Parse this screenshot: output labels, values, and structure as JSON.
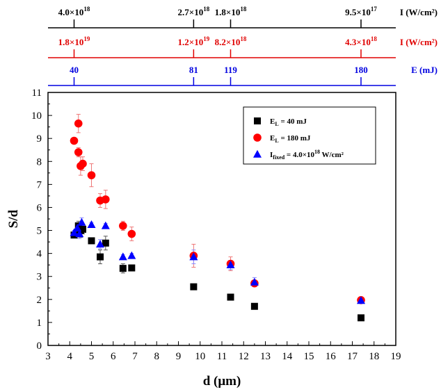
{
  "chart_data": {
    "type": "scatter",
    "xlabel": "d (μm)",
    "ylabel": "S/d",
    "xlim": [
      3,
      19
    ],
    "ylim": [
      0,
      11
    ],
    "xticks": [
      3,
      4,
      5,
      6,
      7,
      8,
      9,
      10,
      11,
      12,
      13,
      14,
      15,
      16,
      17,
      18,
      19
    ],
    "yticks": [
      0,
      1,
      2,
      3,
      4,
      5,
      6,
      7,
      8,
      9,
      10,
      11
    ],
    "grid": false,
    "legend_position": "top-right",
    "series": [
      {
        "name": "E_L = 40 mJ",
        "name_main": "E",
        "name_sub": "L",
        "name_rest": " = 40 mJ",
        "marker": "square",
        "color": "#000000",
        "points": [
          {
            "x": 4.2,
            "y": 4.8,
            "err": 0.1
          },
          {
            "x": 4.4,
            "y": 5.2,
            "err": 0.2
          },
          {
            "x": 4.5,
            "y": 5.0,
            "err": 0.3
          },
          {
            "x": 4.6,
            "y": 5.05,
            "err": 0.2
          },
          {
            "x": 5.0,
            "y": 4.55,
            "err": 0.1
          },
          {
            "x": 5.4,
            "y": 3.85,
            "err": 0.3
          },
          {
            "x": 5.65,
            "y": 4.45,
            "err": 0.3
          },
          {
            "x": 6.45,
            "y": 3.35,
            "err": 0.2
          },
          {
            "x": 6.85,
            "y": 3.37,
            "err": 0.1
          },
          {
            "x": 9.7,
            "y": 2.55,
            "err": 0.1
          },
          {
            "x": 11.4,
            "y": 2.1,
            "err": 0.1
          },
          {
            "x": 12.5,
            "y": 1.7,
            "err": 0.1
          },
          {
            "x": 17.4,
            "y": 1.2,
            "err": 0.1
          }
        ]
      },
      {
        "name": "E_L = 180 mJ",
        "name_main": "E",
        "name_sub": "L",
        "name_rest": " = 180 mJ",
        "marker": "circle",
        "color": "#ff0000",
        "points": [
          {
            "x": 4.2,
            "y": 8.9,
            "err": 0.1
          },
          {
            "x": 4.4,
            "y": 9.65,
            "err": 0.4
          },
          {
            "x": 4.4,
            "y": 8.4,
            "err": 0.2
          },
          {
            "x": 4.5,
            "y": 7.8,
            "err": 0.4
          },
          {
            "x": 4.6,
            "y": 7.9,
            "err": 0.3
          },
          {
            "x": 5.0,
            "y": 7.4,
            "err": 0.5
          },
          {
            "x": 5.4,
            "y": 6.3,
            "err": 0.3
          },
          {
            "x": 5.65,
            "y": 6.35,
            "err": 0.4
          },
          {
            "x": 6.45,
            "y": 5.2,
            "err": 0.2
          },
          {
            "x": 6.85,
            "y": 4.85,
            "err": 0.3
          },
          {
            "x": 9.7,
            "y": 3.9,
            "err": 0.5
          },
          {
            "x": 11.4,
            "y": 3.55,
            "err": 0.3
          },
          {
            "x": 12.5,
            "y": 2.7,
            "err": 0.1
          },
          {
            "x": 17.4,
            "y": 1.97,
            "err": 0.1
          }
        ]
      },
      {
        "name": "I_fixed = 4.0×10^18 W/cm²",
        "name_main": "I",
        "name_sub": "fixed",
        "name_rest": " = 4.0×10",
        "name_sup": "18",
        "name_tail": " W/cm²",
        "marker": "triangle",
        "color": "#0000ff",
        "points": [
          {
            "x": 4.2,
            "y": 4.9,
            "err": 0.1
          },
          {
            "x": 4.35,
            "y": 5.1,
            "err": 0.2
          },
          {
            "x": 4.45,
            "y": 4.85,
            "err": 0.2
          },
          {
            "x": 4.55,
            "y": 5.35,
            "err": 0.2
          },
          {
            "x": 5.0,
            "y": 5.25,
            "err": 0.1
          },
          {
            "x": 5.4,
            "y": 4.4,
            "err": 0.2
          },
          {
            "x": 5.65,
            "y": 5.2,
            "err": 0.1
          },
          {
            "x": 6.45,
            "y": 3.85,
            "err": 0.1
          },
          {
            "x": 6.85,
            "y": 3.9,
            "err": 0.1
          },
          {
            "x": 9.7,
            "y": 3.85,
            "err": 0.3
          },
          {
            "x": 11.4,
            "y": 3.5,
            "err": 0.2
          },
          {
            "x": 12.5,
            "y": 2.75,
            "err": 0.2
          },
          {
            "x": 17.4,
            "y": 1.95,
            "err": 0.1
          }
        ]
      }
    ],
    "top_axes": [
      {
        "color": "#000000",
        "unit": "I (W/cm²)",
        "ticks": [
          {
            "x": 4.2,
            "mant": "4.0×10",
            "exp": "18"
          },
          {
            "x": 9.7,
            "mant": "2.7×10",
            "exp": "18"
          },
          {
            "x": 11.4,
            "mant": "1.8×10",
            "exp": "18"
          },
          {
            "x": 17.4,
            "mant": "9.5×10",
            "exp": "17"
          }
        ]
      },
      {
        "color": "#e00000",
        "unit": "I (W/cm²)",
        "ticks": [
          {
            "x": 4.2,
            "mant": "1.8×10",
            "exp": "19"
          },
          {
            "x": 9.7,
            "mant": "1.2×10",
            "exp": "19"
          },
          {
            "x": 11.4,
            "mant": "8.2×10",
            "exp": "18"
          },
          {
            "x": 17.4,
            "mant": "4.3×10",
            "exp": "18"
          }
        ]
      },
      {
        "color": "#0000e0",
        "unit": "E (mJ)",
        "ticks": [
          {
            "x": 4.2,
            "mant": "40",
            "exp": ""
          },
          {
            "x": 9.7,
            "mant": "81",
            "exp": ""
          },
          {
            "x": 11.4,
            "mant": "119",
            "exp": ""
          },
          {
            "x": 17.4,
            "mant": "180",
            "exp": ""
          }
        ]
      }
    ]
  }
}
